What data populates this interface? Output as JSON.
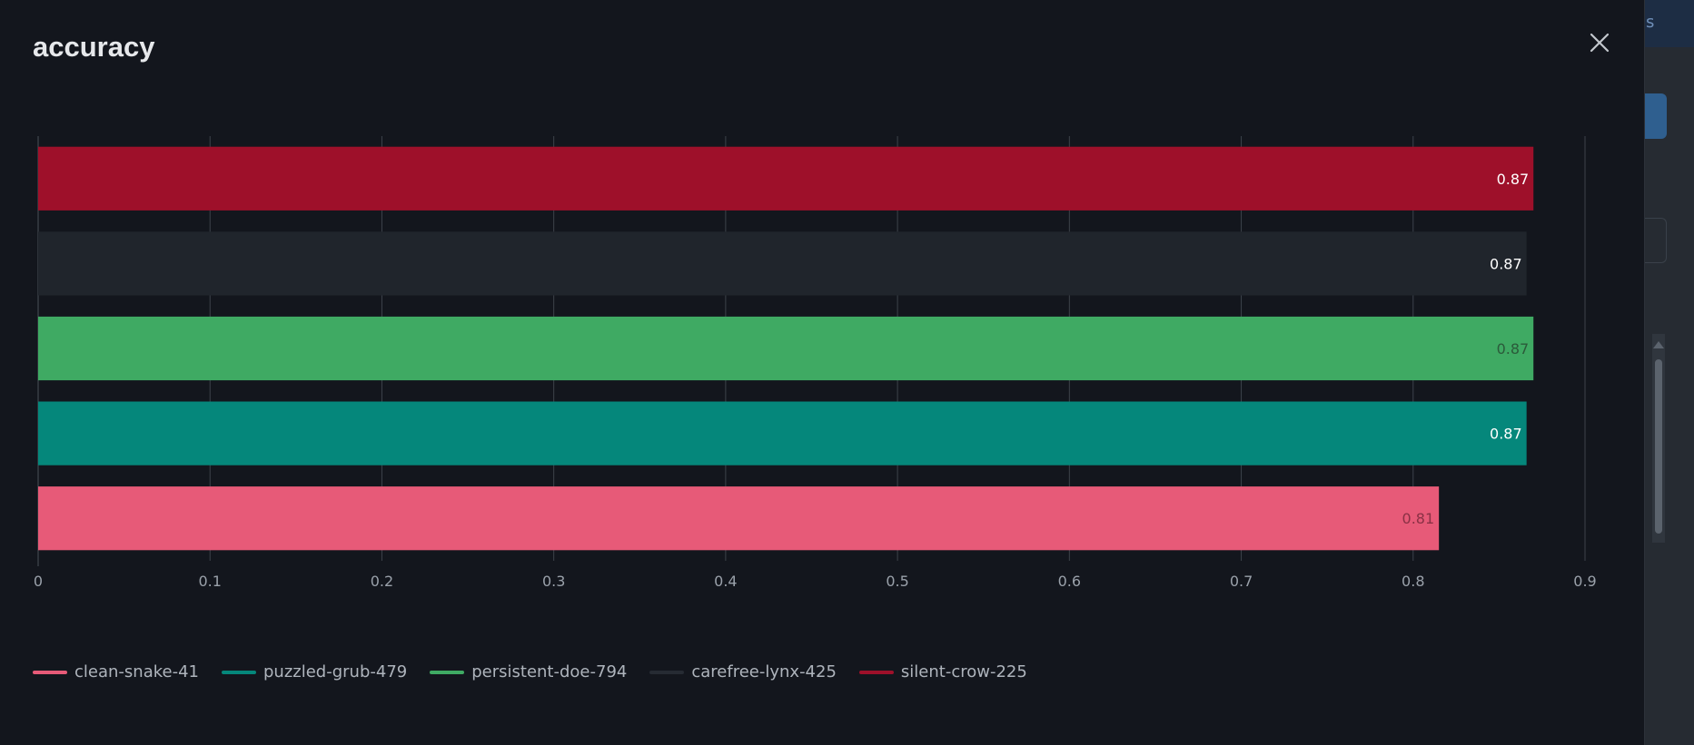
{
  "modal": {
    "title": "accuracy",
    "close_icon": "close-icon"
  },
  "background": {
    "tab_label": "s"
  },
  "chart_data": {
    "type": "bar",
    "orientation": "horizontal",
    "title": "accuracy",
    "xlim": [
      0,
      0.9
    ],
    "x_ticks": [
      "0",
      "0.1",
      "0.2",
      "0.3",
      "0.4",
      "0.5",
      "0.6",
      "0.7",
      "0.8",
      "0.9"
    ],
    "grid": true,
    "legend_position": "bottom-left",
    "series": [
      {
        "name": "silent-crow-225",
        "value": 0.87,
        "label": "0.87",
        "color": "#9e102a",
        "label_color": "#ffffff"
      },
      {
        "name": "carefree-lynx-425",
        "value": 0.866,
        "label": "0.87",
        "color": "#20252c",
        "label_color": "#ffffff"
      },
      {
        "name": "persistent-doe-794",
        "value": 0.87,
        "label": "0.87",
        "color": "#3faa63",
        "label_color": "#2b5a3a"
      },
      {
        "name": "puzzled-grub-479",
        "value": 0.866,
        "label": "0.87",
        "color": "#05877b",
        "label_color": "#ffffff"
      },
      {
        "name": "clean-snake-41",
        "value": 0.815,
        "label": "0.81",
        "color": "#e75a78",
        "label_color": "#8a3145"
      }
    ],
    "legend_order": [
      "clean-snake-41",
      "puzzled-grub-479",
      "persistent-doe-794",
      "carefree-lynx-425",
      "silent-crow-225"
    ]
  }
}
